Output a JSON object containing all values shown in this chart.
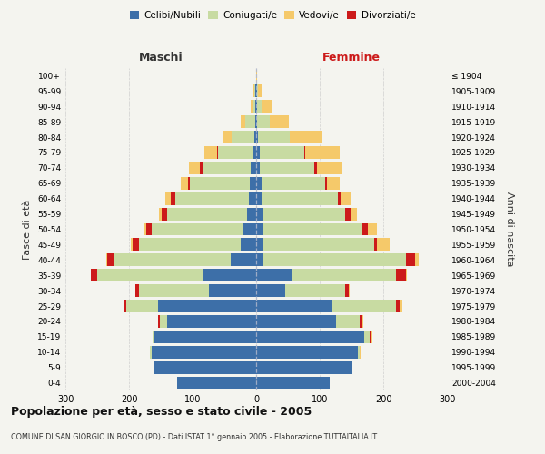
{
  "age_groups": [
    "0-4",
    "5-9",
    "10-14",
    "15-19",
    "20-24",
    "25-29",
    "30-34",
    "35-39",
    "40-44",
    "45-49",
    "50-54",
    "55-59",
    "60-64",
    "65-69",
    "70-74",
    "75-79",
    "80-84",
    "85-89",
    "90-94",
    "95-99",
    "100+"
  ],
  "birth_years": [
    "2000-2004",
    "1995-1999",
    "1990-1994",
    "1985-1989",
    "1980-1984",
    "1975-1979",
    "1970-1974",
    "1965-1969",
    "1960-1964",
    "1955-1959",
    "1950-1954",
    "1945-1949",
    "1940-1944",
    "1935-1939",
    "1930-1934",
    "1925-1929",
    "1920-1924",
    "1915-1919",
    "1910-1914",
    "1905-1909",
    "≤ 1904"
  ],
  "male_celibe": [
    125,
    160,
    165,
    160,
    140,
    155,
    75,
    85,
    40,
    25,
    20,
    15,
    12,
    10,
    8,
    5,
    3,
    2,
    1,
    1,
    0
  ],
  "male_coniugato": [
    0,
    1,
    2,
    3,
    12,
    50,
    110,
    165,
    185,
    160,
    145,
    125,
    115,
    95,
    75,
    55,
    35,
    15,
    5,
    2,
    0
  ],
  "male_vedovo": [
    0,
    0,
    0,
    0,
    0,
    0,
    0,
    0,
    1,
    2,
    3,
    5,
    8,
    12,
    18,
    20,
    15,
    8,
    3,
    1,
    0
  ],
  "male_divorziato": [
    0,
    0,
    0,
    0,
    2,
    3,
    5,
    10,
    10,
    10,
    8,
    8,
    8,
    2,
    5,
    2,
    0,
    0,
    0,
    0,
    0
  ],
  "female_celibe": [
    115,
    150,
    160,
    170,
    125,
    120,
    45,
    55,
    10,
    10,
    10,
    10,
    8,
    8,
    6,
    5,
    3,
    2,
    1,
    1,
    0
  ],
  "female_coniugato": [
    0,
    1,
    3,
    8,
    38,
    100,
    95,
    165,
    225,
    175,
    155,
    130,
    120,
    100,
    85,
    70,
    50,
    20,
    8,
    2,
    0
  ],
  "female_vedovo": [
    0,
    0,
    1,
    2,
    4,
    5,
    2,
    2,
    5,
    20,
    15,
    10,
    15,
    20,
    40,
    55,
    50,
    30,
    15,
    5,
    2
  ],
  "female_divorziato": [
    0,
    0,
    0,
    2,
    2,
    5,
    5,
    15,
    15,
    5,
    10,
    8,
    5,
    3,
    5,
    2,
    0,
    0,
    0,
    0,
    0
  ],
  "color_celibe": "#3d6fa8",
  "color_coniugato": "#c8dba2",
  "color_vedovo": "#f5c96a",
  "color_divorziato": "#cc1a1a",
  "title": "Popolazione per età, sesso e stato civile - 2005",
  "subtitle": "COMUNE DI SAN GIORGIO IN BOSCO (PD) - Dati ISTAT 1° gennaio 2005 - Elaborazione TUTTAITALIA.IT",
  "ylabel_left": "Fasce di età",
  "ylabel_right": "Anni di nascita",
  "xlabel_left": "Maschi",
  "xlabel_right": "Femmine",
  "xlim": 300,
  "bg_color": "#f4f4ef",
  "grid_color": "#cccccc"
}
